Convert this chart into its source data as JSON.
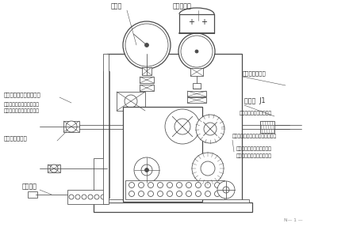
{
  "bg": "#ffffff",
  "lc": "#4a4a4a",
  "tc": "#2a2a2a",
  "lw_main": 0.9,
  "lw_thin": 0.55,
  "fs_label": 5.8,
  "fs_small": 5.0,
  "fs_tiny": 4.5,
  "labels": {
    "pg": "压力表",
    "pc": "压力控制器",
    "tv": "节流阀（调节开阀速度）",
    "tv_cw": "顺时针调节节流阀速度加快",
    "tv_cc": "逆时针调节节流阀速度减慢",
    "con_no": "接液压血无杆密",
    "con_ys": "接液压血有杆密",
    "sv": "截止鄀  J1",
    "sv_d": "用于卸压及测定充气压力",
    "rv": "溢流鄀（控制液压系统最高压力）",
    "rv_cw": "顺时针调节溢流鄀压力升高",
    "rv_cc": "逆时针调节溢流鄀压力降低",
    "hp": "手动油泵",
    "pg_num": "N— 1 —"
  }
}
